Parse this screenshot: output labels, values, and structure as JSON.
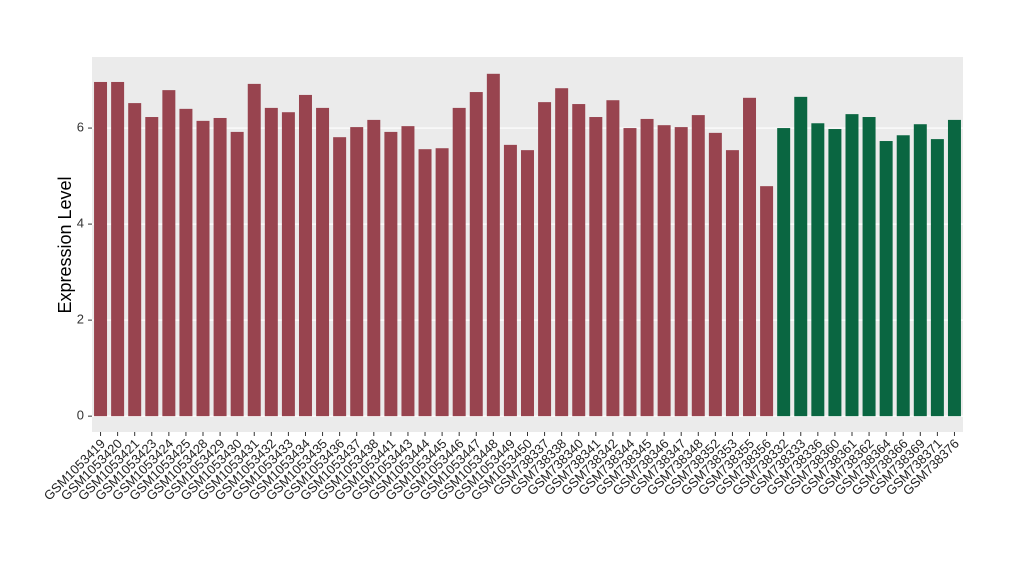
{
  "chart_data": {
    "type": "bar",
    "y_label": "Expression Level",
    "categories": [
      "GSM1053419",
      "GSM1053420",
      "GSM1053421",
      "GSM1053423",
      "GSM1053424",
      "GSM1053425",
      "GSM1053428",
      "GSM1053429",
      "GSM1053430",
      "GSM1053431",
      "GSM1053432",
      "GSM1053433",
      "GSM1053434",
      "GSM1053435",
      "GSM1053436",
      "GSM1053437",
      "GSM1053438",
      "GSM1053441",
      "GSM1053443",
      "GSM1053444",
      "GSM1053445",
      "GSM1053446",
      "GSM1053447",
      "GSM1053448",
      "GSM1053449",
      "GSM1053450",
      "GSM738337",
      "GSM738338",
      "GSM738340",
      "GSM738341",
      "GSM738342",
      "GSM738344",
      "GSM738345",
      "GSM738346",
      "GSM738347",
      "GSM738348",
      "GSM738352",
      "GSM738353",
      "GSM738355",
      "GSM738356",
      "GSM738332",
      "GSM738333",
      "GSM738336",
      "GSM738360",
      "GSM738361",
      "GSM738362",
      "GSM738364",
      "GSM738366",
      "GSM738369",
      "GSM738371",
      "GSM738376"
    ],
    "values": [
      6.96,
      6.96,
      6.52,
      6.23,
      6.79,
      6.4,
      6.15,
      6.21,
      5.92,
      6.92,
      6.42,
      6.33,
      6.69,
      6.42,
      5.81,
      6.02,
      6.17,
      5.92,
      6.04,
      5.56,
      5.58,
      6.42,
      6.75,
      7.13,
      5.65,
      5.54,
      6.54,
      6.83,
      6.5,
      6.23,
      6.58,
      6.0,
      6.19,
      6.06,
      6.02,
      6.27,
      5.9,
      5.54,
      6.63,
      4.79,
      6.0,
      6.65,
      6.1,
      5.98,
      6.29,
      6.23,
      5.73,
      5.85,
      6.08,
      5.77,
      6.17
    ],
    "colors": [
      "#98444f",
      "#98444f",
      "#98444f",
      "#98444f",
      "#98444f",
      "#98444f",
      "#98444f",
      "#98444f",
      "#98444f",
      "#98444f",
      "#98444f",
      "#98444f",
      "#98444f",
      "#98444f",
      "#98444f",
      "#98444f",
      "#98444f",
      "#98444f",
      "#98444f",
      "#98444f",
      "#98444f",
      "#98444f",
      "#98444f",
      "#98444f",
      "#98444f",
      "#98444f",
      "#98444f",
      "#98444f",
      "#98444f",
      "#98444f",
      "#98444f",
      "#98444f",
      "#98444f",
      "#98444f",
      "#98444f",
      "#98444f",
      "#98444f",
      "#98444f",
      "#98444f",
      "#98444f",
      "#0a6641",
      "#0a6641",
      "#0a6641",
      "#0a6641",
      "#0a6641",
      "#0a6641",
      "#0a6641",
      "#0a6641",
      "#0a6641",
      "#0a6641",
      "#0a6641"
    ],
    "ylim": [
      -0.33,
      7.48
    ],
    "yticks": [
      0,
      2,
      4,
      6
    ],
    "grid": true
  }
}
